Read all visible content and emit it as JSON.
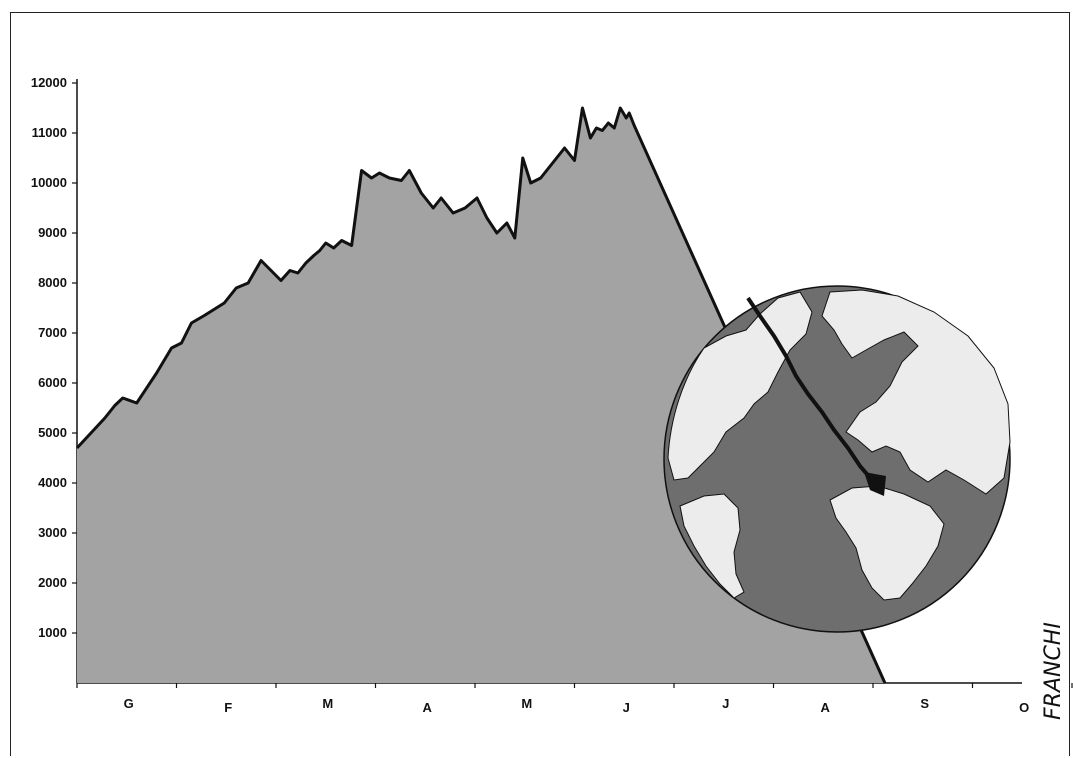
{
  "chart_data": {
    "type": "area",
    "title": "",
    "xlabel": "",
    "ylabel": "",
    "ylim": [
      0,
      12000
    ],
    "y_ticks": [
      1000,
      2000,
      3000,
      4000,
      5000,
      6000,
      7000,
      8000,
      9000,
      10000,
      11000,
      12000
    ],
    "x_months": [
      "G",
      "F",
      "M",
      "A",
      "M",
      "J",
      "J",
      "A",
      "S",
      "O"
    ],
    "grid": false,
    "fill_color": "#a3a3a3",
    "line_color": "#111111",
    "series": [
      {
        "x": [
          0,
          0.14,
          0.28,
          0.38,
          0.46,
          0.6,
          0.8,
          0.95,
          1.05,
          1.15,
          1.28,
          1.4,
          1.48,
          1.6,
          1.72,
          1.85,
          1.95,
          2.05,
          2.14,
          2.22,
          2.3,
          2.38,
          2.44,
          2.5,
          2.58,
          2.66,
          2.76,
          2.86,
          2.96,
          3.04,
          3.14,
          3.26,
          3.34,
          3.46,
          3.58,
          3.66,
          3.78,
          3.9,
          4.02,
          4.12,
          4.22,
          4.32,
          4.4,
          4.48,
          4.56,
          4.66,
          4.74,
          4.82,
          4.9,
          5.0,
          5.08,
          5.16,
          5.22,
          5.28,
          5.34,
          5.4,
          5.46,
          5.52,
          5.55,
          5.6
        ],
        "values": [
          4700,
          5000,
          5300,
          5550,
          5700,
          5600,
          6200,
          6700,
          6800,
          7200,
          7350,
          7500,
          7600,
          7900,
          8000,
          8450,
          8250,
          8050,
          8250,
          8200,
          8400,
          8550,
          8650,
          8800,
          8700,
          8850,
          8750,
          10250,
          10100,
          10200,
          10100,
          10050,
          10250,
          9800,
          9500,
          9700,
          9400,
          9500,
          9700,
          9300,
          9000,
          9200,
          8900,
          10500,
          10000,
          10100,
          10300,
          10500,
          10700,
          10450,
          11500,
          10900,
          11100,
          11050,
          11200,
          11100,
          11500,
          11300,
          11400,
          11150
        ]
      }
    ],
    "drop": {
      "from_x": 5.6,
      "from_value": 11150,
      "to_x": 8.12,
      "to_value": 0
    }
  },
  "signature_text": "FRANCHI",
  "globe": {
    "ocean_color": "#6e6e6e",
    "land_color": "#ececec",
    "dark_color": "#111111"
  }
}
